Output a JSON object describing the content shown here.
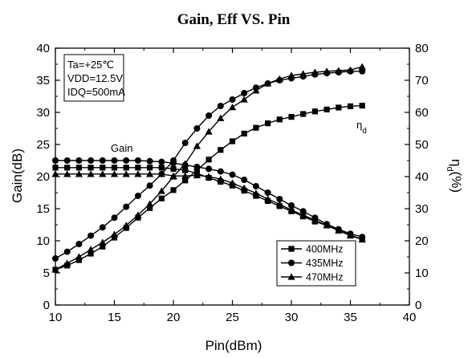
{
  "chart_data": {
    "type": "line",
    "title": "Gain, Eff VS. Pin",
    "xlabel": "Pin(dBm)",
    "ylabel": "Gain(dB)",
    "y2label_main": "η",
    "y2label_sub": "d",
    "y2label_suffix": "(%)",
    "xlim": [
      10,
      40
    ],
    "ylim": [
      0,
      40
    ],
    "y2lim": [
      0,
      80
    ],
    "xticks": [
      10,
      15,
      20,
      25,
      30,
      35,
      40
    ],
    "yticks": [
      0,
      5,
      10,
      15,
      20,
      25,
      30,
      35,
      40
    ],
    "y2ticks": [
      0,
      10,
      20,
      30,
      40,
      50,
      60,
      70,
      80
    ],
    "conditions": [
      "Ta=+25℃",
      "VDD=12.5V",
      "IDQ=500mA"
    ],
    "annotations": {
      "gain": "Gain",
      "eff_main": "η",
      "eff_sub": "d"
    },
    "legend_position": "bottom-right",
    "x": [
      10,
      11,
      12,
      13,
      14,
      15,
      16,
      17,
      18,
      19,
      20,
      21,
      22,
      23,
      24,
      25,
      26,
      27,
      28,
      29,
      30,
      31,
      32,
      33,
      34,
      35,
      36
    ],
    "series": [
      {
        "name": "400MHz",
        "marker": "square",
        "gain": [
          21.4,
          21.4,
          21.4,
          21.4,
          21.4,
          21.4,
          21.4,
          21.4,
          21.4,
          21.4,
          21.2,
          21.0,
          20.5,
          19.8,
          19.2,
          18.6,
          17.8,
          17.0,
          16.2,
          15.4,
          14.6,
          13.8,
          13.0,
          12.4,
          11.6,
          10.8,
          10.2
        ],
        "efficiency": [
          11.0,
          12.3,
          14.0,
          16.0,
          18.2,
          21.0,
          24.0,
          27.2,
          30.2,
          33.2,
          35.8,
          38.8,
          42.0,
          45.3,
          48.3,
          51.0,
          53.4,
          55.2,
          56.6,
          57.8,
          58.6,
          59.5,
          60.3,
          60.9,
          61.5,
          61.9,
          62.1
        ]
      },
      {
        "name": "435MHz",
        "marker": "circle",
        "gain": [
          22.5,
          22.5,
          22.5,
          22.5,
          22.5,
          22.5,
          22.5,
          22.5,
          22.4,
          22.3,
          22.1,
          21.8,
          21.5,
          21.2,
          20.8,
          20.3,
          19.5,
          18.5,
          17.5,
          16.5,
          15.5,
          14.6,
          13.6,
          12.6,
          11.8,
          11.1,
          10.6
        ],
        "efficiency": [
          14.5,
          16.6,
          19.0,
          21.6,
          24.2,
          27.2,
          30.6,
          34.0,
          37.2,
          40.8,
          45.0,
          50.5,
          55.0,
          59.0,
          62.0,
          64.0,
          66.0,
          67.7,
          69.0,
          70.0,
          70.6,
          71.2,
          71.8,
          72.2,
          72.5,
          72.8,
          72.8
        ]
      },
      {
        "name": "470MHz",
        "marker": "triangle",
        "gain": [
          20.4,
          20.4,
          20.4,
          20.4,
          20.4,
          20.4,
          20.4,
          20.4,
          20.4,
          20.4,
          20.1,
          20.1,
          20.2,
          20.0,
          19.6,
          19.0,
          18.2,
          17.4,
          16.5,
          15.7,
          14.8,
          14.0,
          13.2,
          12.4,
          11.6,
          10.9,
          10.2
        ],
        "efficiency": [
          11.0,
          13.0,
          15.0,
          17.3,
          19.5,
          22.0,
          24.8,
          28.0,
          31.5,
          35.5,
          40.0,
          44.0,
          49.5,
          54.0,
          58.2,
          61.6,
          64.0,
          66.8,
          69.0,
          70.4,
          71.5,
          72.0,
          72.5,
          72.8,
          73.0,
          73.2,
          74.2
        ]
      }
    ]
  }
}
